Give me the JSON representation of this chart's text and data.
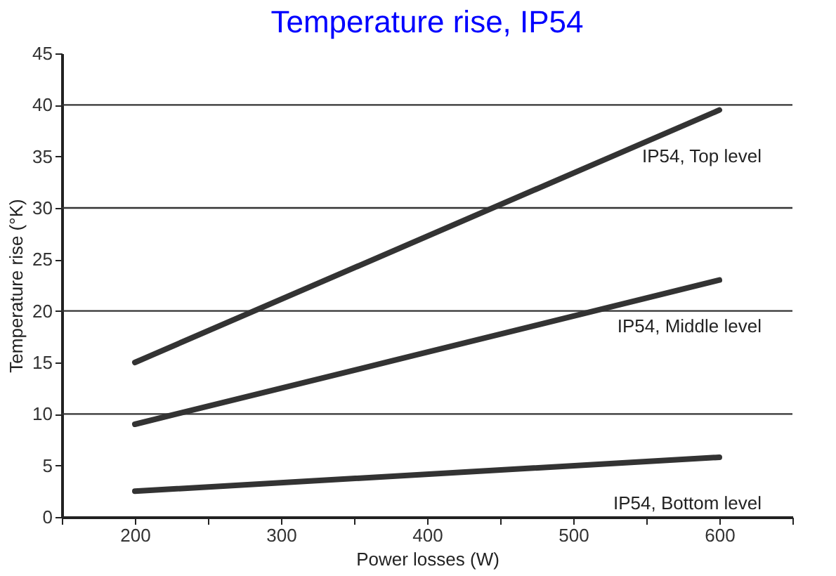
{
  "chart_data": {
    "type": "line",
    "title": "Temperature rise, IP54",
    "xlabel": "Power losses (W)",
    "ylabel": "Temperature rise (°K)",
    "x": [
      200,
      600
    ],
    "series": [
      {
        "name": "IP54, Top level",
        "color": "#333333",
        "values": [
          15,
          39.5
        ]
      },
      {
        "name": "IP54, Middle level",
        "color": "#333333",
        "values": [
          9,
          23
        ]
      },
      {
        "name": "IP54, Bottom level",
        "color": "#333333",
        "values": [
          2.5,
          5.8
        ]
      }
    ],
    "xlim": [
      150,
      650
    ],
    "xticks": [
      {
        "value": 150,
        "label": null
      },
      200,
      {
        "value": 250,
        "label": null
      },
      300,
      {
        "value": 350,
        "label": null
      },
      400,
      {
        "value": 450,
        "label": null
      },
      500,
      {
        "value": 550,
        "label": null
      },
      600,
      {
        "value": 650,
        "label": null
      }
    ],
    "ylim": [
      0,
      45
    ],
    "yticks": [
      0,
      5,
      10,
      15,
      20,
      25,
      30,
      35,
      40,
      45
    ],
    "ref_lines": [
      {
        "axis": "y",
        "value": 10,
        "color": "#333333"
      },
      {
        "axis": "y",
        "value": 20,
        "color": "#333333"
      },
      {
        "axis": "y",
        "value": 30,
        "color": "#333333"
      },
      {
        "axis": "y",
        "value": 40,
        "color": "#333333"
      }
    ],
    "legend": false,
    "marker": "none",
    "line_style": "solid"
  }
}
